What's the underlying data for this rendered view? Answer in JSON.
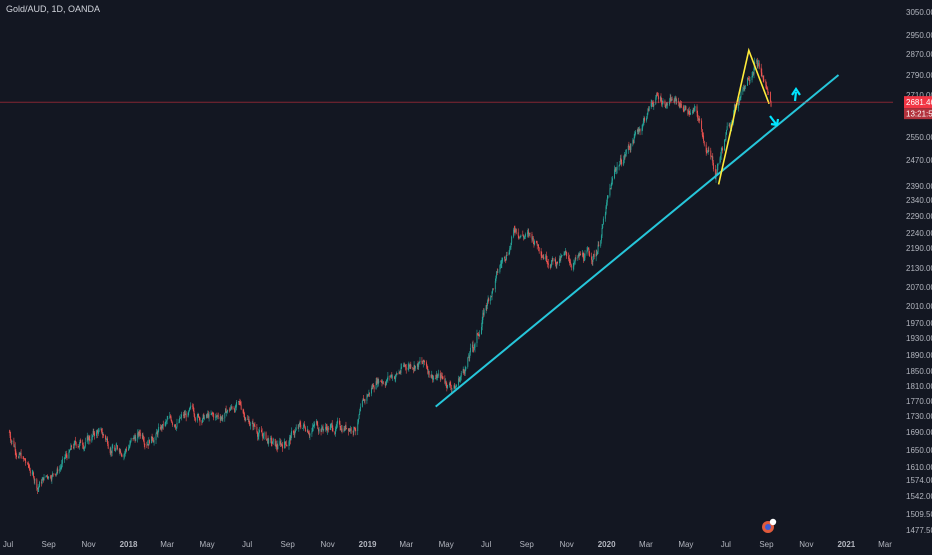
{
  "symbol_label": "Gold/AUD, 1D, OANDA",
  "colors": {
    "background": "#131722",
    "up": "#26a69a",
    "down": "#ef5350",
    "trendline": "#26c6da",
    "triangle": "#ffeb3b",
    "price_line": "#f23645",
    "arrows": "#00e5ff"
  },
  "price_tag": {
    "price": "2681.462",
    "countdown": "13:21:52"
  },
  "chart_data": {
    "type": "candlestick",
    "title": "Gold/AUD, 1D, OANDA",
    "xlabel": "",
    "ylabel": "",
    "grid": false,
    "ylim": [
      1460,
      3070
    ],
    "y_ticks": [
      "3050.000",
      "2950.000",
      "2870.000",
      "2790.000",
      "2710.000",
      "2630.000",
      "2550.000",
      "2470.000",
      "2390.000",
      "2340.000",
      "2290.000",
      "2240.000",
      "2190.000",
      "2130.000",
      "2070.000",
      "2010.000",
      "1970.000",
      "1930.000",
      "1890.000",
      "1850.000",
      "1810.000",
      "1770.000",
      "1730.000",
      "1690.000",
      "1650.000",
      "1610.000",
      "1574.000",
      "1542.000",
      "1509.500",
      "1477.500"
    ],
    "x_ticks": [
      "Jul",
      "Sep",
      "Nov",
      "2018",
      "Mar",
      "May",
      "Jul",
      "Sep",
      "Nov",
      "2019",
      "Mar",
      "May",
      "Jul",
      "Sep",
      "Nov",
      "2020",
      "Mar",
      "May",
      "Jul",
      "Sep",
      "Nov",
      "2021",
      "Mar"
    ],
    "price_path": [
      [
        "2017-07",
        1690
      ],
      [
        "2017-08",
        1565
      ],
      [
        "2017-09",
        1610
      ],
      [
        "2017-10",
        1660
      ],
      [
        "2017-11",
        1690
      ],
      [
        "2017-12",
        1650
      ],
      [
        "2018-01",
        1680
      ],
      [
        "2018-02",
        1695
      ],
      [
        "2018-03",
        1720
      ],
      [
        "2018-04",
        1735
      ],
      [
        "2018-05",
        1720
      ],
      [
        "2018-06",
        1760
      ],
      [
        "2018-07",
        1700
      ],
      [
        "2018-08",
        1650
      ],
      [
        "2018-09",
        1695
      ],
      [
        "2018-10",
        1710
      ],
      [
        "2018-11",
        1700
      ],
      [
        "2018-12",
        1715
      ],
      [
        "2019-01",
        1830
      ],
      [
        "2019-02",
        1845
      ],
      [
        "2019-03",
        1880
      ],
      [
        "2019-04",
        1840
      ],
      [
        "2019-05",
        1810
      ],
      [
        "2019-06",
        1920
      ],
      [
        "2019-07",
        2090
      ],
      [
        "2019-08",
        2260
      ],
      [
        "2019-09",
        2210
      ],
      [
        "2019-10",
        2160
      ],
      [
        "2019-11",
        2150
      ],
      [
        "2019-12",
        2170
      ],
      [
        "2020-01",
        2440
      ],
      [
        "2020-02",
        2560
      ],
      [
        "2020-03",
        2700
      ],
      [
        "2020-04",
        2680
      ],
      [
        "2020-05",
        2640
      ],
      [
        "2020-06",
        2430
      ],
      [
        "2020-07",
        2660
      ],
      [
        "2020-08",
        2870
      ],
      [
        "2020-09",
        2681
      ]
    ],
    "trendline": {
      "from": [
        "2019-04-15",
        1755
      ],
      "to": [
        "2020-12-20",
        2790
      ]
    },
    "triangle": [
      [
        "2020-06-20",
        2395
      ],
      [
        "2020-08-05",
        2885
      ],
      [
        "2020-09-05",
        2675
      ]
    ],
    "current_price": 2681.462
  }
}
